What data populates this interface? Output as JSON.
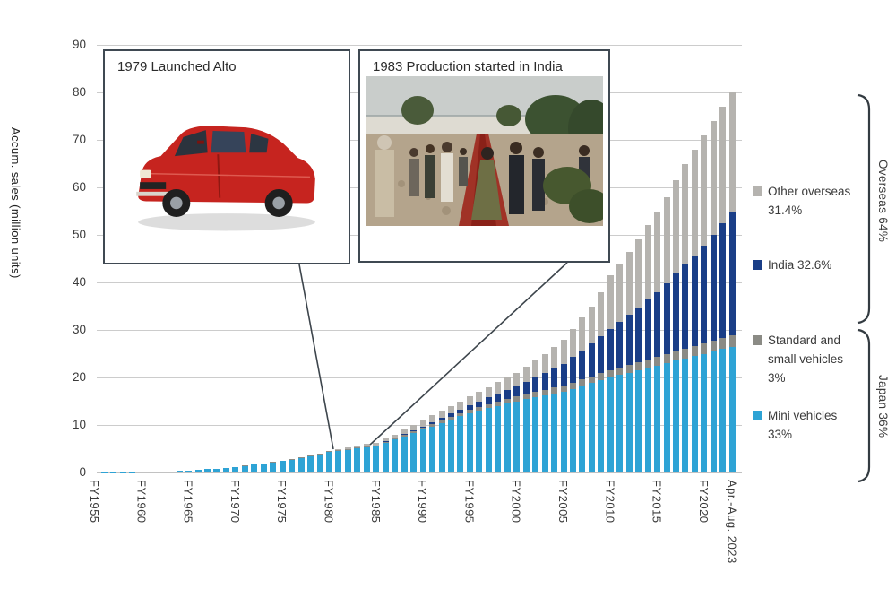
{
  "y_axis": {
    "title": "Accum. sales (million units)",
    "ticks": [
      0,
      10,
      20,
      30,
      40,
      50,
      60,
      70,
      80,
      90
    ],
    "max": 90
  },
  "x_axis": {
    "tick_labels": [
      "FY1955",
      "FY1960",
      "FY1965",
      "FY1970",
      "FY1975",
      "FY1980",
      "FY1985",
      "FY1990",
      "FY1995",
      "FY2000",
      "FY2005",
      "FY2010",
      "FY2015",
      "FY2020",
      "Apr.-Aug. 2023"
    ]
  },
  "annotations": [
    {
      "title": "1979 Launched Alto",
      "image": "red-alto-hatchback-photo"
    },
    {
      "title": "1983 Production started in India",
      "image": "ceremony-red-carpet-photo"
    }
  ],
  "legend": {
    "other_overseas": {
      "label": "Other overseas 31.4%",
      "color": "#b5b3af"
    },
    "india": {
      "label": "India 32.6%",
      "color": "#1a3e87"
    },
    "standard": {
      "label": "Standard and small vehicles 3%",
      "color": "#8b8b85"
    },
    "mini": {
      "label": "Mini vehicles 33%",
      "color": "#2ea3d5"
    }
  },
  "brackets": [
    {
      "label": "Overseas 64%"
    },
    {
      "label": "Japan 36%"
    }
  ],
  "chart_data": {
    "type": "bar",
    "stacked": true,
    "ylabel": "Accum. sales (million units)",
    "ylim": [
      0,
      90
    ],
    "grid": true,
    "legend_position": "right",
    "stack_order_bottom_to_top": [
      "mini_vehicles",
      "standard_small_vehicles",
      "india",
      "other_overseas"
    ],
    "series_colors": {
      "mini_vehicles": "#2ea3d5",
      "standard_small_vehicles": "#8b8b85",
      "india": "#1a3e87",
      "other_overseas": "#b5b3af"
    },
    "final_bar_share": {
      "japan": "36%",
      "mini_vehicles": "33%",
      "standard_small_vehicles": "3%",
      "overseas": "64%",
      "india": "32.6%",
      "other_overseas": "31.4%"
    },
    "bars_note": "each row = [x label ('' = unlabeled year), mini, standard_small, india, other_overseas] in million units, fiscal years 1955-2023",
    "bars": [
      [
        "FY1955",
        0.01,
        0,
        0,
        0
      ],
      [
        "",
        0.02,
        0,
        0,
        0
      ],
      [
        "",
        0.04,
        0,
        0,
        0
      ],
      [
        "",
        0.06,
        0,
        0,
        0
      ],
      [
        "",
        0.09,
        0,
        0,
        0
      ],
      [
        "FY1960",
        0.13,
        0,
        0,
        0
      ],
      [
        "",
        0.17,
        0,
        0,
        0
      ],
      [
        "",
        0.22,
        0,
        0,
        0
      ],
      [
        "",
        0.28,
        0,
        0,
        0
      ],
      [
        "",
        0.35,
        0,
        0,
        0
      ],
      [
        "FY1965",
        0.44,
        0,
        0,
        0
      ],
      [
        "",
        0.55,
        0,
        0,
        0
      ],
      [
        "",
        0.68,
        0,
        0,
        0
      ],
      [
        "",
        0.83,
        0,
        0,
        0
      ],
      [
        "",
        0.96,
        0.04,
        0,
        0
      ],
      [
        "FY1970",
        1.15,
        0.05,
        0,
        0
      ],
      [
        "",
        1.39,
        0.06,
        0,
        0
      ],
      [
        "",
        1.63,
        0.07,
        0,
        0
      ],
      [
        "",
        1.87,
        0.08,
        0,
        0
      ],
      [
        "",
        2.11,
        0.09,
        0,
        0
      ],
      [
        "FY1975",
        2.4,
        0.1,
        0,
        0
      ],
      [
        "",
        2.69,
        0.11,
        0,
        0
      ],
      [
        "",
        3.02,
        0.13,
        0,
        0
      ],
      [
        "",
        3.36,
        0.14,
        0,
        0
      ],
      [
        "",
        3.79,
        0.16,
        0,
        0
      ],
      [
        "FY1980",
        4.3,
        0.18,
        0,
        0.02
      ],
      [
        "",
        4.54,
        0.19,
        0,
        0.17
      ],
      [
        "",
        4.78,
        0.19,
        0,
        0.33
      ],
      [
        "",
        5.02,
        0.19,
        0,
        0.39
      ],
      [
        "",
        5.26,
        0.2,
        0.02,
        0.47
      ],
      [
        "FY1985",
        5.5,
        0.2,
        0.05,
        0.55
      ],
      [
        "",
        6.2,
        0.24,
        0.1,
        0.56
      ],
      [
        "",
        6.9,
        0.28,
        0.15,
        0.67
      ],
      [
        "",
        7.6,
        0.32,
        0.2,
        0.88
      ],
      [
        "",
        8.3,
        0.36,
        0.25,
        1.09
      ],
      [
        "FY1990",
        9.0,
        0.4,
        0.3,
        1.3
      ],
      [
        "",
        9.7,
        0.46,
        0.44,
        1.4
      ],
      [
        "",
        10.4,
        0.52,
        0.58,
        1.5
      ],
      [
        "",
        11.1,
        0.58,
        0.72,
        1.6
      ],
      [
        "",
        11.8,
        0.64,
        0.86,
        1.7
      ],
      [
        "FY1995",
        12.5,
        0.7,
        1.0,
        1.8
      ],
      [
        "",
        13.0,
        0.76,
        1.24,
        2.0
      ],
      [
        "",
        13.5,
        0.82,
        1.48,
        2.2
      ],
      [
        "",
        14.0,
        0.88,
        1.72,
        2.4
      ],
      [
        "",
        14.5,
        0.94,
        1.96,
        2.6
      ],
      [
        "FY2000",
        15.0,
        1.0,
        2.2,
        2.8
      ],
      [
        "",
        15.4,
        1.06,
        2.66,
        3.18
      ],
      [
        "",
        15.8,
        1.12,
        3.12,
        3.56
      ],
      [
        "",
        16.2,
        1.18,
        3.58,
        4.04
      ],
      [
        "",
        16.6,
        1.24,
        4.04,
        4.62
      ],
      [
        "FY2005",
        17.0,
        1.3,
        4.5,
        5.2
      ],
      [
        "",
        17.6,
        1.36,
        5.3,
        5.94
      ],
      [
        "",
        18.2,
        1.42,
        6.1,
        6.88
      ],
      [
        "",
        18.8,
        1.48,
        6.9,
        7.82
      ],
      [
        "",
        19.4,
        1.54,
        7.7,
        9.36
      ],
      [
        "FY2010",
        20.0,
        1.6,
        8.5,
        11.4
      ],
      [
        "",
        20.5,
        1.66,
        9.5,
        12.34
      ],
      [
        "",
        21.0,
        1.72,
        10.5,
        13.28
      ],
      [
        "",
        21.5,
        1.78,
        11.5,
        14.22
      ],
      [
        "",
        22.0,
        1.84,
        12.5,
        15.66
      ],
      [
        "FY2015",
        22.5,
        1.9,
        13.5,
        17.1
      ],
      [
        "",
        23.0,
        1.96,
        14.9,
        18.14
      ],
      [
        "",
        23.5,
        2.02,
        16.3,
        19.68
      ],
      [
        "",
        24.0,
        2.08,
        17.7,
        21.22
      ],
      [
        "",
        24.5,
        2.14,
        19.1,
        22.26
      ],
      [
        "FY2020",
        25.0,
        2.2,
        20.5,
        23.3
      ],
      [
        "",
        25.5,
        2.27,
        22.3,
        23.93
      ],
      [
        "",
        26.0,
        2.33,
        24.2,
        24.47
      ],
      [
        "Apr.-Aug. 2023",
        26.4,
        2.4,
        26.1,
        25.1
      ]
    ]
  }
}
